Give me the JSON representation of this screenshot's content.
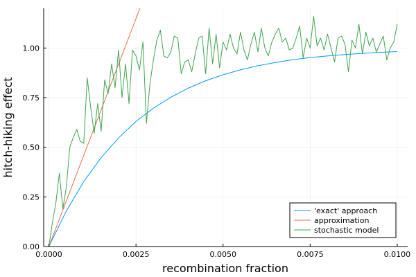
{
  "chart_data": {
    "type": "line",
    "xlabel": "recombination fraction",
    "ylabel": "hitch-hiking effect",
    "xlim": [
      -0.00015,
      0.0103
    ],
    "ylim": [
      0.0,
      1.2
    ],
    "xticks": [
      0.0,
      0.0025,
      0.005,
      0.0075,
      0.01
    ],
    "xtick_labels": [
      "0.0000",
      "0.0025",
      "0.0050",
      "0.0075",
      "0.0100"
    ],
    "yticks": [
      0.0,
      0.25,
      0.5,
      0.75,
      1.0
    ],
    "ytick_labels": [
      "0.00",
      "0.25",
      "0.50",
      "0.75",
      "1.00"
    ],
    "grid": true,
    "legend_position": "bottom-right",
    "series": [
      {
        "name": "'exact' approach",
        "color": "#009AFA",
        "x": [
          0.0,
          0.0005,
          0.001,
          0.0015,
          0.002,
          0.0025,
          0.003,
          0.0035,
          0.004,
          0.0045,
          0.005,
          0.0055,
          0.006,
          0.0065,
          0.007,
          0.0075,
          0.008,
          0.0085,
          0.009,
          0.0095,
          0.01
        ],
        "y": [
          0.0,
          0.179,
          0.327,
          0.448,
          0.547,
          0.63,
          0.697,
          0.752,
          0.798,
          0.835,
          0.865,
          0.89,
          0.911,
          0.927,
          0.941,
          0.952,
          0.96,
          0.967,
          0.973,
          0.978,
          0.982
        ]
      },
      {
        "name": "approximation",
        "color": "#E36F47",
        "x": [
          0.0,
          0.0027
        ],
        "y": [
          0.0,
          1.24
        ]
      },
      {
        "name": "stochastic model",
        "color": "#3EA44E",
        "x": [
          0.0,
          0.0001,
          0.0002,
          0.0003,
          0.0004,
          0.0005,
          0.0006,
          0.0007,
          0.0008,
          0.0009,
          0.001,
          0.0011,
          0.0012,
          0.0013,
          0.0014,
          0.0015,
          0.0016,
          0.0017,
          0.0018,
          0.0019,
          0.002,
          0.0021,
          0.0022,
          0.0023,
          0.0024,
          0.0025,
          0.0026,
          0.0027,
          0.0028,
          0.0029,
          0.003,
          0.0031,
          0.0032,
          0.0033,
          0.0034,
          0.0035,
          0.0036,
          0.0037,
          0.0038,
          0.0039,
          0.004,
          0.0041,
          0.0042,
          0.0043,
          0.0044,
          0.0045,
          0.0046,
          0.0047,
          0.0048,
          0.0049,
          0.005,
          0.0051,
          0.0052,
          0.0053,
          0.0054,
          0.0055,
          0.0056,
          0.0057,
          0.0058,
          0.0059,
          0.006,
          0.0061,
          0.0062,
          0.0063,
          0.0064,
          0.0065,
          0.0066,
          0.0067,
          0.0068,
          0.0069,
          0.007,
          0.0071,
          0.0072,
          0.0073,
          0.0074,
          0.0075,
          0.0076,
          0.0077,
          0.0078,
          0.0079,
          0.008,
          0.0081,
          0.0082,
          0.0083,
          0.0084,
          0.0085,
          0.0086,
          0.0087,
          0.0088,
          0.0089,
          0.009,
          0.0091,
          0.0092,
          0.0093,
          0.0094,
          0.0095,
          0.0096,
          0.0097,
          0.0098,
          0.0099,
          0.01
        ],
        "y": [
          0.0,
          0.12,
          0.22,
          0.37,
          0.19,
          0.3,
          0.5,
          0.55,
          0.59,
          0.53,
          0.52,
          0.85,
          0.7,
          0.57,
          0.72,
          0.58,
          0.84,
          0.77,
          0.92,
          0.8,
          0.99,
          0.75,
          0.92,
          0.72,
          0.99,
          0.96,
          0.89,
          1.03,
          0.62,
          0.82,
          0.94,
          1.04,
          1.09,
          0.96,
          0.95,
          0.98,
          1.06,
          1.05,
          0.87,
          0.93,
          0.94,
          0.88,
          0.97,
          1.05,
          1.06,
          0.87,
          1.1,
          0.92,
          1.07,
          0.9,
          1.03,
          0.99,
          1.07,
          1.0,
          0.97,
          1.08,
          0.99,
          0.94,
          1.02,
          1.08,
          0.98,
          1.1,
          1.0,
          0.96,
          1.03,
          1.07,
          1.1,
          1.03,
          1.05,
          0.99,
          1.0,
          1.05,
          1.11,
          0.95,
          1.05,
          1.0,
          1.16,
          1.01,
          1.05,
          0.99,
          1.07,
          1.0,
          0.93,
          1.05,
          1.06,
          1.02,
          0.88,
          1.04,
          1.0,
          1.12,
          0.97,
          1.08,
          1.01,
          1.05,
          0.98,
          1.02,
          1.06,
          0.94,
          1.0,
          1.03,
          1.12
        ]
      }
    ]
  }
}
